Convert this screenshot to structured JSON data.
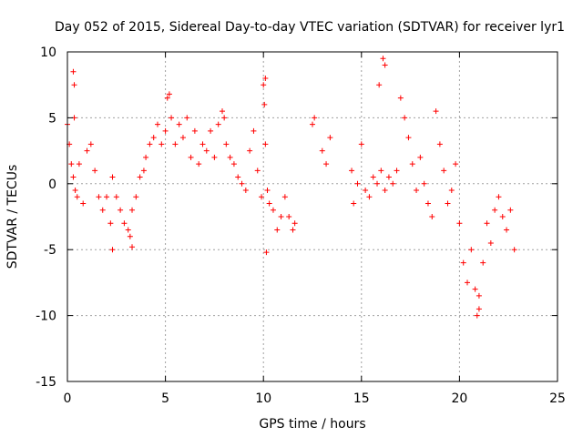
{
  "chart_data": {
    "type": "scatter",
    "title": "Day 052 of 2015, Sidereal Day-to-day VTEC variation (SDTVAR) for receiver lyr1",
    "xlabel": "GPS time / hours",
    "ylabel": "SDTVAR / TECUs",
    "xlim": [
      0,
      25
    ],
    "ylim": [
      -15,
      10
    ],
    "xticks": [
      0,
      5,
      10,
      15,
      20,
      25
    ],
    "yticks": [
      -15,
      -10,
      -5,
      0,
      5,
      10
    ],
    "grid": true,
    "marker": "+",
    "color": "#ff0000",
    "series": [
      {
        "name": "SDTVAR",
        "x": [
          0.0,
          0.1,
          0.2,
          0.3,
          0.35,
          0.4,
          0.5,
          0.6,
          0.8,
          1.0,
          1.2,
          1.4,
          1.6,
          1.8,
          2.0,
          2.2,
          2.3,
          2.5,
          2.7,
          2.9,
          3.1,
          3.2,
          3.3,
          3.5,
          3.7,
          3.9,
          4.0,
          4.2,
          4.4,
          4.6,
          4.8,
          5.0,
          5.1,
          5.3,
          5.5,
          5.7,
          5.9,
          6.1,
          6.3,
          6.5,
          6.7,
          6.9,
          7.1,
          7.3,
          7.5,
          7.7,
          7.9,
          8.1,
          8.3,
          8.5,
          8.7,
          8.9,
          9.1,
          9.3,
          9.5,
          9.7,
          9.9,
          10.0,
          10.05,
          10.1,
          10.2,
          10.3,
          10.5,
          10.7,
          10.9,
          11.1,
          11.3,
          11.5,
          11.6,
          12.5,
          12.6,
          13.0,
          13.2,
          13.4,
          14.5,
          14.6,
          14.8,
          15.0,
          15.2,
          15.4,
          15.6,
          15.8,
          16.0,
          16.2,
          16.4,
          16.6,
          16.8,
          16.1,
          16.2,
          15.9,
          17.0,
          17.2,
          17.4,
          17.6,
          17.8,
          18.0,
          18.2,
          18.4,
          18.6,
          18.8,
          19.0,
          19.2,
          19.4,
          19.6,
          19.8,
          20.0,
          20.2,
          20.4,
          20.6,
          20.8,
          21.0,
          21.2,
          21.4,
          21.6,
          21.8,
          22.0,
          22.2,
          22.4,
          22.6,
          22.8,
          0.3,
          0.35,
          5.2,
          8.0,
          10.1,
          20.9,
          21.0,
          2.3,
          3.3,
          10.15
        ],
        "y": [
          4.5,
          3.0,
          1.5,
          0.5,
          5.0,
          -0.5,
          -1.0,
          1.5,
          -1.5,
          2.5,
          3.0,
          1.0,
          -1.0,
          -2.0,
          -1.0,
          -3.0,
          0.5,
          -1.0,
          -2.0,
          -3.0,
          -3.5,
          -4.0,
          -2.0,
          -1.0,
          0.5,
          1.0,
          2.0,
          3.0,
          3.5,
          4.5,
          3.0,
          4.0,
          6.5,
          5.0,
          3.0,
          4.5,
          3.5,
          5.0,
          2.0,
          4.0,
          1.5,
          3.0,
          2.5,
          4.0,
          2.0,
          4.5,
          5.5,
          3.0,
          2.0,
          1.5,
          0.5,
          0.0,
          -0.5,
          2.5,
          4.0,
          1.0,
          -1.0,
          7.5,
          6.0,
          3.0,
          -0.5,
          -1.5,
          -2.0,
          -3.5,
          -2.5,
          -1.0,
          -2.5,
          -3.5,
          -3.0,
          4.5,
          5.0,
          2.5,
          1.5,
          3.5,
          1.0,
          -1.5,
          0.0,
          3.0,
          -0.5,
          -1.0,
          0.5,
          0.0,
          1.0,
          -0.5,
          0.5,
          0.0,
          1.0,
          9.5,
          9.0,
          7.5,
          6.5,
          5.0,
          3.5,
          1.5,
          -0.5,
          2.0,
          0.0,
          -1.5,
          -2.5,
          5.5,
          3.0,
          1.0,
          -1.5,
          -0.5,
          1.5,
          -3.0,
          -6.0,
          -7.5,
          -5.0,
          -8.0,
          -9.5,
          -6.0,
          -3.0,
          -4.5,
          -2.0,
          -1.0,
          -2.5,
          -3.5,
          -2.0,
          -5.0,
          8.5,
          7.5,
          6.8,
          5.0,
          8.0,
          -10.0,
          -8.5,
          -5.0,
          -4.8,
          -5.2
        ]
      }
    ]
  }
}
